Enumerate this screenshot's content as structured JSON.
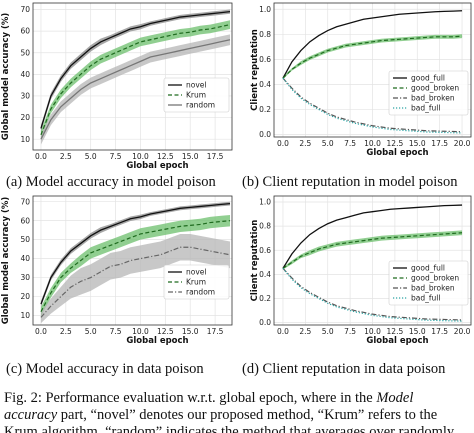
{
  "captions": [
    "(a) Model accuracy in model poison",
    "(b) Client reputation in model poison",
    "(c) Model accuracy in data poison",
    "(d) Client reputation in data poison"
  ],
  "fig_caption": {
    "line1_a": "Fig. 2: Performance evaluation w.r.t. global epoch, where in the ",
    "line1_b": "Model",
    "line2_a": "accuracy",
    "line2_b": " part, “novel” denotes our proposed method, “Krum” refers to the",
    "line3": "Krum algorithm, “random” indicates the method that averages over randomly"
  },
  "chart_data": [
    {
      "type": "line",
      "xlabel": "Global epoch",
      "ylabel": "Global model accuracy (%)",
      "xlim": [
        -0.8,
        19.2
      ],
      "ylim": [
        5,
        73
      ],
      "xticks": [
        0.0,
        2.5,
        5.0,
        7.5,
        10.0,
        12.5,
        15.0,
        17.5
      ],
      "yticks": [
        10,
        20,
        30,
        40,
        50,
        60,
        70
      ],
      "legend": "bottom-right",
      "x": [
        0,
        1,
        2,
        3,
        4,
        5,
        6,
        7,
        8,
        9,
        10,
        11,
        12,
        13,
        14,
        15,
        16,
        17,
        18,
        19
      ],
      "series": [
        {
          "name": "novel",
          "style": "solid",
          "color": "#111111",
          "band": "#8a8a8a",
          "values": [
            15,
            30,
            38,
            44,
            48,
            52,
            55,
            57,
            59,
            61,
            62,
            63.5,
            64.5,
            65.5,
            66.5,
            67,
            67.5,
            68,
            68.5,
            69
          ],
          "spread": [
            1.5,
            1.5,
            1.5,
            1.5,
            1.5,
            1.5,
            1.5,
            1.2,
            1.2,
            1.2,
            1.2,
            1,
            1,
            1,
            1,
            1,
            1,
            1,
            1,
            1
          ]
        },
        {
          "name": "Krum",
          "style": "dashed",
          "color": "#1f6b1f",
          "band": "#6cbf6c",
          "values": [
            12,
            24,
            31,
            36,
            40,
            44,
            47,
            49,
            51,
            53,
            55,
            56,
            57,
            58,
            59,
            59.5,
            60.5,
            61,
            62,
            63
          ],
          "spread": [
            2,
            2,
            2,
            2,
            2,
            2,
            2,
            2,
            2,
            2,
            2,
            2,
            2,
            2,
            2,
            2,
            2,
            2,
            2,
            2
          ]
        },
        {
          "name": "random",
          "style": "solid",
          "color": "#777777",
          "band": "#b5b5b5",
          "values": [
            10,
            19,
            25,
            29,
            33,
            36,
            38,
            40,
            42,
            44,
            46,
            48,
            49,
            50,
            51,
            52,
            53,
            54,
            55,
            56
          ],
          "spread": [
            2.5,
            2.5,
            2.5,
            2.5,
            2.5,
            2.5,
            2.5,
            2.5,
            2.5,
            2.5,
            2.5,
            2.5,
            2.5,
            2.5,
            2.5,
            2.5,
            2.5,
            2.5,
            2.5,
            2.5
          ]
        }
      ]
    },
    {
      "type": "line",
      "xlabel": "Global epoch",
      "ylabel": "Client reputation",
      "xlim": [
        -1,
        21
      ],
      "ylim": [
        -0.02,
        1.05
      ],
      "xticks": [
        0.0,
        2.5,
        5.0,
        7.5,
        10.0,
        12.5,
        15.0,
        17.5,
        20.0
      ],
      "yticks": [
        0.0,
        0.2,
        0.4,
        0.6,
        0.8,
        1.0
      ],
      "legend": "right",
      "x": [
        0,
        1,
        2,
        3,
        4,
        5,
        6,
        7,
        8,
        9,
        10,
        11,
        12,
        13,
        14,
        15,
        16,
        17,
        18,
        19,
        20
      ],
      "series": [
        {
          "name": "good_full",
          "style": "solid",
          "color": "#111111",
          "band": "",
          "values": [
            0.45,
            0.58,
            0.67,
            0.74,
            0.79,
            0.83,
            0.86,
            0.88,
            0.9,
            0.92,
            0.93,
            0.94,
            0.95,
            0.96,
            0.965,
            0.97,
            0.975,
            0.98,
            0.983,
            0.985,
            0.988
          ],
          "spread": [
            0,
            0,
            0,
            0,
            0,
            0,
            0,
            0,
            0,
            0,
            0,
            0,
            0,
            0,
            0,
            0,
            0,
            0,
            0,
            0,
            0
          ]
        },
        {
          "name": "good_broken",
          "style": "dashed",
          "color": "#1f6b1f",
          "band": "#6cbf6c",
          "values": [
            0.45,
            0.52,
            0.57,
            0.61,
            0.64,
            0.67,
            0.69,
            0.71,
            0.72,
            0.73,
            0.74,
            0.75,
            0.755,
            0.76,
            0.765,
            0.77,
            0.775,
            0.78,
            0.78,
            0.78,
            0.785
          ],
          "spread": [
            0.01,
            0.01,
            0.015,
            0.015,
            0.015,
            0.015,
            0.015,
            0.015,
            0.015,
            0.015,
            0.015,
            0.015,
            0.015,
            0.015,
            0.015,
            0.015,
            0.015,
            0.015,
            0.015,
            0.015,
            0.015
          ]
        },
        {
          "name": "bad_broken",
          "style": "dashdot",
          "color": "#555555",
          "band": "",
          "values": [
            0.45,
            0.37,
            0.3,
            0.25,
            0.21,
            0.17,
            0.14,
            0.12,
            0.1,
            0.085,
            0.07,
            0.06,
            0.05,
            0.045,
            0.04,
            0.035,
            0.03,
            0.028,
            0.026,
            0.024,
            0.022
          ],
          "spread": [
            0,
            0,
            0,
            0,
            0,
            0,
            0,
            0,
            0,
            0,
            0,
            0,
            0,
            0,
            0,
            0,
            0,
            0,
            0,
            0,
            0
          ]
        },
        {
          "name": "bad_full",
          "style": "dotted",
          "color": "#2aa5a5",
          "band": "",
          "values": [
            0.45,
            0.36,
            0.29,
            0.24,
            0.2,
            0.16,
            0.13,
            0.11,
            0.09,
            0.075,
            0.06,
            0.05,
            0.04,
            0.035,
            0.03,
            0.025,
            0.02,
            0.018,
            0.016,
            0.014,
            0.012
          ],
          "spread": [
            0,
            0,
            0,
            0,
            0,
            0,
            0,
            0,
            0,
            0,
            0,
            0,
            0,
            0,
            0,
            0,
            0,
            0,
            0,
            0,
            0
          ]
        }
      ]
    },
    {
      "type": "line",
      "xlabel": "Global epoch",
      "ylabel": "Global model accuracy (%)",
      "xlim": [
        -0.8,
        19.2
      ],
      "ylim": [
        5,
        73
      ],
      "xticks": [
        0.0,
        2.5,
        5.0,
        7.5,
        10.0,
        12.5,
        15.0,
        17.5
      ],
      "yticks": [
        10,
        20,
        30,
        40,
        50,
        60,
        70
      ],
      "legend": "bottom-right",
      "x": [
        0,
        1,
        2,
        3,
        4,
        5,
        6,
        7,
        8,
        9,
        10,
        11,
        12,
        13,
        14,
        15,
        16,
        17,
        18,
        19
      ],
      "series": [
        {
          "name": "novel",
          "style": "solid",
          "color": "#111111",
          "band": "#8a8a8a",
          "values": [
            16,
            30,
            38,
            44,
            48,
            52,
            55,
            57,
            59,
            61,
            62,
            63.5,
            64.5,
            65.5,
            66.5,
            67,
            67.5,
            68,
            68.5,
            69
          ],
          "spread": [
            1.5,
            1.5,
            1.5,
            1.5,
            1.5,
            1.5,
            1.5,
            1.2,
            1.2,
            1.2,
            1.2,
            1,
            1,
            1,
            1,
            1,
            1,
            1,
            1,
            1
          ]
        },
        {
          "name": "Krum",
          "style": "dashed",
          "color": "#1f6b1f",
          "band": "#6cbf6c",
          "values": [
            12,
            22,
            30,
            35,
            39,
            43,
            45,
            47,
            49,
            51,
            53,
            54,
            55,
            56,
            57,
            57.5,
            58,
            59,
            59.5,
            60
          ],
          "spread": [
            2.5,
            2.5,
            2.5,
            2.5,
            3,
            3,
            3,
            3,
            3,
            3,
            3,
            3,
            3,
            3,
            3,
            3,
            3,
            3,
            3,
            3
          ]
        },
        {
          "name": "random",
          "style": "dashdot",
          "color": "#666666",
          "band": "#b5b5b5",
          "values": [
            9,
            15,
            20,
            25,
            28,
            30,
            33,
            36,
            37,
            39,
            40,
            41,
            42,
            44,
            46,
            46,
            45,
            44,
            43,
            42
          ],
          "spread": [
            3,
            4,
            5,
            6,
            7,
            7,
            7,
            7,
            7,
            7,
            7,
            7,
            7,
            7,
            7,
            7,
            7,
            7,
            7,
            7
          ]
        }
      ]
    },
    {
      "type": "line",
      "xlabel": "Global epoch",
      "ylabel": "Client reputation",
      "xlim": [
        -1,
        21
      ],
      "ylim": [
        -0.02,
        1.05
      ],
      "xticks": [
        0.0,
        2.5,
        5.0,
        7.5,
        10.0,
        12.5,
        15.0,
        17.5,
        20.0
      ],
      "yticks": [
        0.0,
        0.2,
        0.4,
        0.6,
        0.8,
        1.0
      ],
      "legend": "right",
      "x": [
        0,
        1,
        2,
        3,
        4,
        5,
        6,
        7,
        8,
        9,
        10,
        11,
        12,
        13,
        14,
        15,
        16,
        17,
        18,
        19,
        20
      ],
      "series": [
        {
          "name": "good_full",
          "style": "solid",
          "color": "#111111",
          "band": "",
          "values": [
            0.45,
            0.57,
            0.66,
            0.73,
            0.78,
            0.82,
            0.85,
            0.87,
            0.89,
            0.91,
            0.92,
            0.93,
            0.94,
            0.945,
            0.95,
            0.955,
            0.96,
            0.965,
            0.97,
            0.972,
            0.975
          ],
          "spread": [
            0,
            0,
            0,
            0,
            0,
            0,
            0,
            0,
            0,
            0,
            0,
            0,
            0,
            0,
            0,
            0,
            0,
            0,
            0,
            0,
            0
          ]
        },
        {
          "name": "good_broken",
          "style": "dashed",
          "color": "#1f6b1f",
          "band": "#6cbf6c",
          "values": [
            0.45,
            0.5,
            0.55,
            0.58,
            0.61,
            0.63,
            0.65,
            0.66,
            0.67,
            0.68,
            0.69,
            0.7,
            0.705,
            0.71,
            0.715,
            0.72,
            0.725,
            0.73,
            0.735,
            0.74,
            0.745
          ],
          "spread": [
            0.01,
            0.015,
            0.015,
            0.02,
            0.02,
            0.02,
            0.02,
            0.02,
            0.02,
            0.02,
            0.02,
            0.02,
            0.02,
            0.02,
            0.02,
            0.02,
            0.02,
            0.02,
            0.02,
            0.02,
            0.02
          ]
        },
        {
          "name": "bad_broken",
          "style": "dashdot",
          "color": "#555555",
          "band": "",
          "values": [
            0.45,
            0.37,
            0.3,
            0.25,
            0.21,
            0.17,
            0.14,
            0.12,
            0.1,
            0.085,
            0.07,
            0.06,
            0.05,
            0.045,
            0.04,
            0.035,
            0.03,
            0.028,
            0.026,
            0.024,
            0.022
          ],
          "spread": [
            0,
            0,
            0,
            0,
            0,
            0,
            0,
            0,
            0,
            0,
            0,
            0,
            0,
            0,
            0,
            0,
            0,
            0,
            0,
            0,
            0
          ]
        },
        {
          "name": "bad_full",
          "style": "dotted",
          "color": "#2aa5a5",
          "band": "",
          "values": [
            0.45,
            0.36,
            0.29,
            0.24,
            0.2,
            0.16,
            0.13,
            0.11,
            0.09,
            0.075,
            0.06,
            0.05,
            0.04,
            0.035,
            0.03,
            0.025,
            0.02,
            0.018,
            0.016,
            0.014,
            0.012
          ],
          "spread": [
            0,
            0,
            0,
            0,
            0,
            0,
            0,
            0,
            0,
            0,
            0,
            0,
            0,
            0,
            0,
            0,
            0,
            0,
            0,
            0,
            0
          ]
        }
      ]
    }
  ]
}
